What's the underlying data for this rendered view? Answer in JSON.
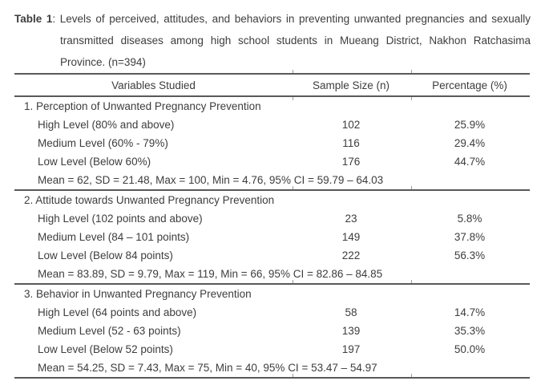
{
  "colors": {
    "background": "#ffffff",
    "text": "#3d3d3d",
    "rule": "#595959",
    "tick": "#9c9c9c"
  },
  "caption": {
    "label": "Table 1",
    "line1_rest": ": Levels of perceived, attitudes, and behaviors in preventing unwanted pregnancies and sexually",
    "line2": "transmitted diseases among high school students in Mueang District, Nakhon Ratchasima",
    "line3": "Province. (n=394)"
  },
  "table": {
    "columns": [
      "Variables Studied",
      "Sample Size (n)",
      "Percentage (%)"
    ],
    "sections": [
      {
        "heading": "1. Perception of Unwanted Pregnancy Prevention",
        "rows": [
          {
            "label": "High Level (80% and above)",
            "n": "102",
            "pct": "25.9%"
          },
          {
            "label": "Medium Level (60% - 79%)",
            "n": "116",
            "pct": "29.4%"
          },
          {
            "label": "Low Level (Below 60%)",
            "n": "176",
            "pct": "44.7%"
          }
        ],
        "summary": "Mean = 62, SD = 21.48, Max = 100, Min = 4.76, 95% CI = 59.79 – 64.03"
      },
      {
        "heading": "2. Attitude towards Unwanted Pregnancy Prevention",
        "rows": [
          {
            "label": "High Level (102 points and above)",
            "n": "23",
            "pct": "5.8%"
          },
          {
            "label": "Medium Level (84 – 101 points)",
            "n": "149",
            "pct": "37.8%"
          },
          {
            "label": "Low Level (Below 84 points)",
            "n": "222",
            "pct": "56.3%"
          }
        ],
        "summary": "Mean = 83.89, SD = 9.79, Max = 119, Min = 66, 95% CI = 82.86 – 84.85"
      },
      {
        "heading": "3. Behavior in Unwanted Pregnancy Prevention",
        "rows": [
          {
            "label": "High Level (64 points and above)",
            "n": "58",
            "pct": "14.7%"
          },
          {
            "label": "Medium Level (52 - 63 points)",
            "n": "139",
            "pct": "35.3%"
          },
          {
            "label": "Low Level (Below 52 points)",
            "n": "197",
            "pct": "50.0%"
          }
        ],
        "summary": "Mean = 54.25, SD = 7.43, Max = 75, Min = 40, 95% CI = 53.47 – 54.97"
      }
    ]
  }
}
